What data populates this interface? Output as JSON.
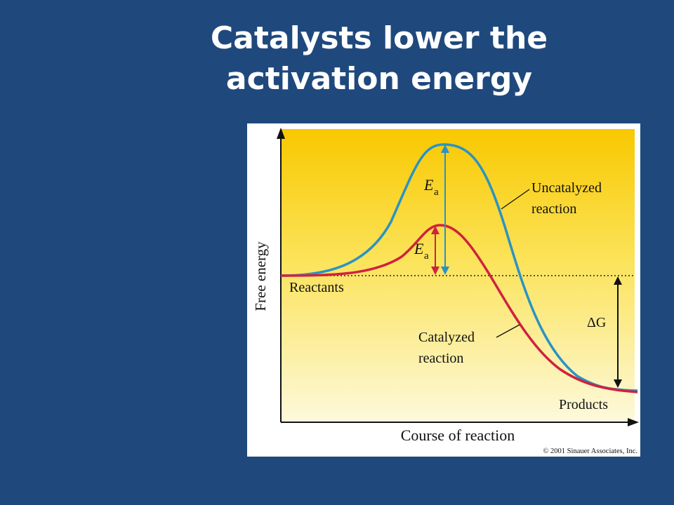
{
  "slide": {
    "title_line1": "Catalysts lower the",
    "title_line2": "activation energy"
  },
  "diagram": {
    "y_axis_label": "Free energy",
    "x_axis_label": "Course of reaction",
    "reactants_label": "Reactants",
    "products_label": "Products",
    "uncatalyzed_label_line1": "Uncatalyzed",
    "uncatalyzed_label_line2": "reaction",
    "catalyzed_label_line1": "Catalyzed",
    "catalyzed_label_line2": "reaction",
    "ea_symbol": "E",
    "ea_subscript": "a",
    "delta_g_label": "ΔG",
    "copyright": "© 2001 Sinauer Associates, Inc.",
    "colors": {
      "uncatalyzed": "#2a93c4",
      "catalyzed": "#d0213f",
      "background_top": "#f8c800",
      "background_bottom": "#fdf9dc",
      "slide_background": "#1f497d"
    }
  }
}
